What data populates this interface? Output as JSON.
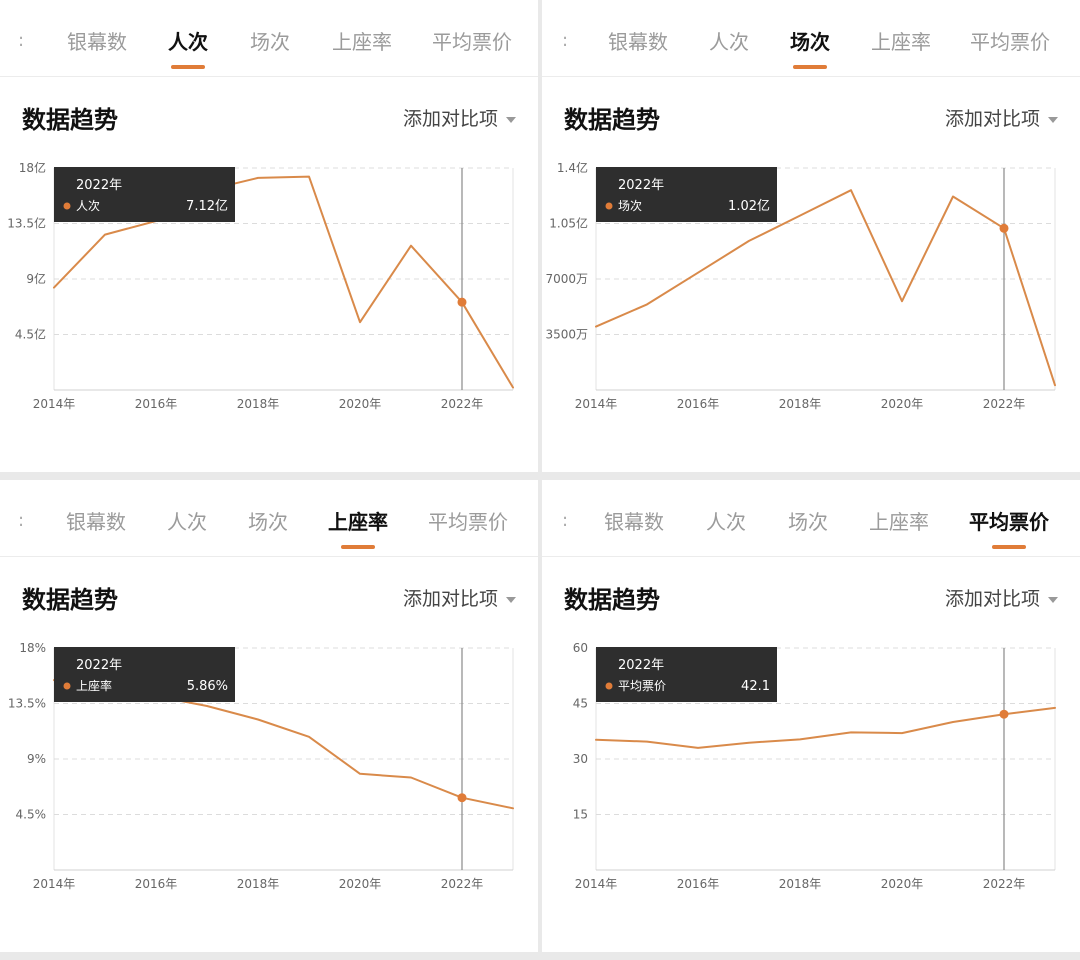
{
  "panels": [
    {
      "tabs": [
        "银幕数",
        "人次",
        "场次",
        "上座率",
        "平均票价"
      ],
      "active_tab": 1,
      "section_title": "数据趋势",
      "compare_label": "添加对比项",
      "tooltip": {
        "title": "2022年",
        "series": "人次",
        "value": "7.12亿"
      }
    },
    {
      "tabs": [
        "银幕数",
        "人次",
        "场次",
        "上座率",
        "平均票价"
      ],
      "active_tab": 2,
      "section_title": "数据趋势",
      "compare_label": "添加对比项",
      "tooltip": {
        "title": "2022年",
        "series": "场次",
        "value": "1.02亿"
      }
    },
    {
      "tabs": [
        "银幕数",
        "人次",
        "场次",
        "上座率",
        "平均票价"
      ],
      "active_tab": 3,
      "section_title": "数据趋势",
      "compare_label": "添加对比项",
      "tooltip": {
        "title": "2022年",
        "series": "上座率",
        "value": "5.86%"
      }
    },
    {
      "tabs": [
        "银幕数",
        "人次",
        "场次",
        "上座率",
        "平均票价"
      ],
      "active_tab": 4,
      "section_title": "数据趋势",
      "compare_label": "添加对比项",
      "tooltip": {
        "title": "2022年",
        "series": "平均票价",
        "value": "42.1"
      }
    }
  ],
  "colors": {
    "line": "#d98a4a",
    "dot": "#e07c38",
    "tooltip_bg": "#2e2e2e",
    "grid": "#dcdcdc",
    "active_tab_underline": "#e07c38"
  },
  "chart_data": [
    {
      "type": "line",
      "series_name": "人次",
      "unit": "亿",
      "x": [
        2014,
        2015,
        2016,
        2017,
        2018,
        2019,
        2020,
        2021,
        2022,
        2023
      ],
      "x_tick_labels": [
        "2014年",
        "2016年",
        "2018年",
        "2020年",
        "2022年"
      ],
      "y_tick_labels": [
        "18亿",
        "13.5亿",
        "9亿",
        "4.5亿"
      ],
      "values": [
        8.3,
        12.6,
        13.7,
        16.2,
        17.2,
        17.3,
        5.5,
        11.7,
        7.12,
        0.2
      ],
      "ylim": [
        0,
        18
      ],
      "highlight_x": 2022,
      "grid": true
    },
    {
      "type": "line",
      "series_name": "场次",
      "unit": "万",
      "x": [
        2014,
        2015,
        2016,
        2017,
        2018,
        2019,
        2020,
        2021,
        2022,
        2023
      ],
      "x_tick_labels": [
        "2014年",
        "2016年",
        "2018年",
        "2020年",
        "2022年"
      ],
      "y_tick_labels": [
        "1.4亿",
        "1.05亿",
        "7000万",
        "3500万"
      ],
      "values": [
        4000,
        5400,
        7400,
        9400,
        11000,
        12600,
        5600,
        12200,
        10200,
        300
      ],
      "ylim": [
        0,
        14000
      ],
      "highlight_x": 2022,
      "grid": true
    },
    {
      "type": "line",
      "series_name": "上座率",
      "unit": "%",
      "x": [
        2014,
        2015,
        2016,
        2017,
        2018,
        2019,
        2020,
        2021,
        2022,
        2023
      ],
      "x_tick_labels": [
        "2014年",
        "2016年",
        "2018年",
        "2020年",
        "2022年"
      ],
      "y_tick_labels": [
        "18%",
        "13.5%",
        "9%",
        "4.5%"
      ],
      "values": [
        15.4,
        17.1,
        14.1,
        13.3,
        12.2,
        10.8,
        7.8,
        7.5,
        5.86,
        5.0
      ],
      "ylim": [
        0,
        18
      ],
      "highlight_x": 2022,
      "grid": true
    },
    {
      "type": "line",
      "series_name": "平均票价",
      "unit": "",
      "x": [
        2014,
        2015,
        2016,
        2017,
        2018,
        2019,
        2020,
        2021,
        2022,
        2023
      ],
      "x_tick_labels": [
        "2014年",
        "2016年",
        "2018年",
        "2020年",
        "2022年"
      ],
      "y_tick_labels": [
        "60",
        "45",
        "30",
        "15"
      ],
      "values": [
        35.2,
        34.7,
        33.0,
        34.4,
        35.3,
        37.2,
        37.0,
        40.0,
        42.1,
        43.8
      ],
      "ylim": [
        0,
        60
      ],
      "highlight_x": 2022,
      "grid": true
    }
  ]
}
